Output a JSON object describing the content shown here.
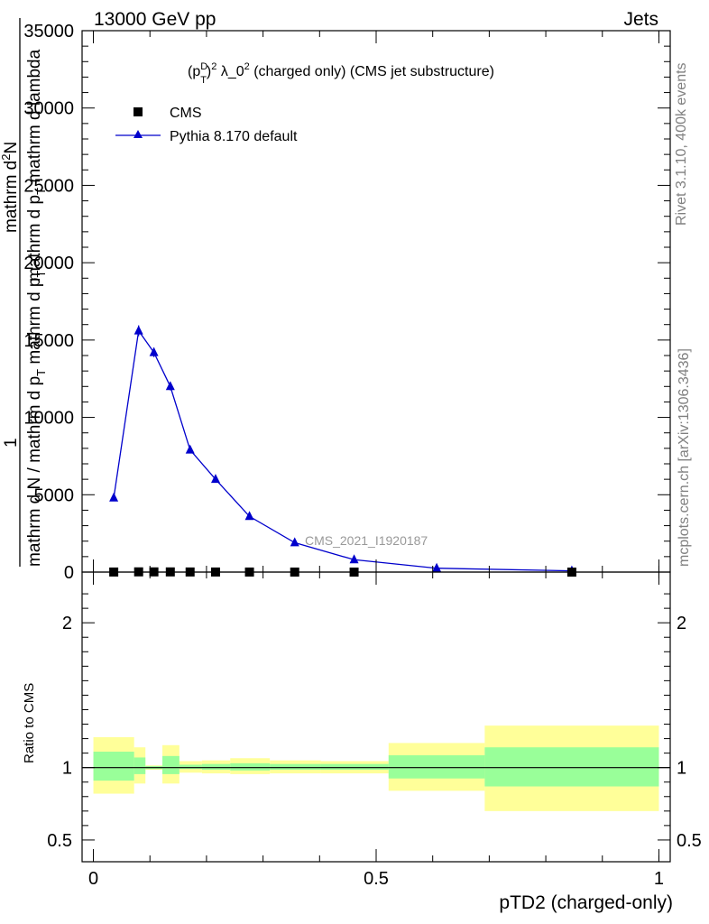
{
  "header": {
    "left": "13000 GeV pp",
    "right": "Jets"
  },
  "side_labels": {
    "rivet": "Rivet 3.1.10,  400k events",
    "mcplots": "mcplots.cern.ch [arXiv:1306.3436]"
  },
  "colors": {
    "mc_line": "#0000cc",
    "data_marker": "#000000",
    "band_inner": "#99ff99",
    "band_outer": "#ffff99"
  },
  "chart_data": [
    {
      "type": "line",
      "panel": "main",
      "title_parts": {
        "p": "(p",
        "sup_d": "D",
        "sub_t": "T",
        "rest": ")",
        "sup2": "2",
        "mid": " λ_0",
        "sup3": "2",
        "tail": " (charged only) (CMS jet substructure)"
      },
      "ylabel_parts": {
        "numer_one": "1",
        "numer_text": "mathrm d N / mathrm d p",
        "numer_sub": "T",
        "numer_tail": " mathrm d p",
        "numer_sub2": "T",
        "denom_top": "mathrm d",
        "denom_sup": "2",
        "denom_rest": "N",
        "denom_bottom": "mathrm d p",
        "denom_bottom_sub": "T",
        "denom_bottom_tail": " mathrm d lambda"
      },
      "watermark": "CMS_2021_I1920187",
      "ylim": [
        0,
        35000
      ],
      "xlim": [
        -0.02,
        1.02
      ],
      "y_ticks": [
        0,
        5000,
        10000,
        15000,
        20000,
        25000,
        30000,
        35000
      ],
      "y_tick_labels": [
        "0",
        "5000",
        "10000",
        "15000",
        "20000",
        "25000",
        "30000",
        "35000"
      ],
      "legend": {
        "placement": "top-left",
        "entries": [
          "CMS",
          "Pythia 8.170 default"
        ]
      },
      "series": [
        {
          "name": "CMS",
          "marker": "square",
          "x": [
            0.036,
            0.08,
            0.107,
            0.136,
            0.171,
            0.216,
            0.276,
            0.356,
            0.461,
            0.846
          ],
          "y": [
            5,
            15,
            14,
            12,
            8,
            6,
            4,
            2,
            1,
            0.1
          ]
        },
        {
          "name": "Pythia 8.170 default",
          "marker": "triangle",
          "x": [
            0.036,
            0.08,
            0.107,
            0.136,
            0.171,
            0.216,
            0.276,
            0.356,
            0.461,
            0.607,
            0.846
          ],
          "y": [
            4800,
            15600,
            14200,
            12000,
            7900,
            6000,
            3600,
            1900,
            800,
            250,
            80
          ],
          "yerr": [
            100,
            350,
            300,
            250,
            180,
            150,
            100,
            60,
            40,
            20,
            10
          ]
        }
      ]
    },
    {
      "type": "area",
      "panel": "ratio",
      "ylabel": "Ratio to CMS",
      "xlabel": "pTD2 (charged-only)",
      "ylim": [
        0.35,
        2.35
      ],
      "xlim": [
        -0.02,
        1.02
      ],
      "y_ticks": [
        0.5,
        1,
        2
      ],
      "y_tick_labels": [
        "0.5",
        "1",
        "2"
      ],
      "x_ticks": [
        0,
        0.5,
        1
      ],
      "x_tick_labels": [
        "0",
        "0.5",
        "1"
      ],
      "bins": [
        {
          "lo": 0.0,
          "hi": 0.072,
          "in_lo": 0.91,
          "in_hi": 1.11,
          "out_lo": 0.82,
          "out_hi": 1.21
        },
        {
          "lo": 0.072,
          "hi": 0.092,
          "in_lo": 0.955,
          "in_hi": 1.07,
          "out_lo": 0.89,
          "out_hi": 1.14
        },
        {
          "lo": 0.092,
          "hi": 0.122,
          "in_lo": 0.99,
          "in_hi": 1.01,
          "out_lo": 0.985,
          "out_hi": 1.015
        },
        {
          "lo": 0.122,
          "hi": 0.152,
          "in_lo": 0.955,
          "in_hi": 1.08,
          "out_lo": 0.89,
          "out_hi": 1.155
        },
        {
          "lo": 0.152,
          "hi": 0.192,
          "in_lo": 0.99,
          "in_hi": 1.02,
          "out_lo": 0.965,
          "out_hi": 1.045
        },
        {
          "lo": 0.192,
          "hi": 0.242,
          "in_lo": 0.985,
          "in_hi": 1.025,
          "out_lo": 0.96,
          "out_hi": 1.05
        },
        {
          "lo": 0.242,
          "hi": 0.312,
          "in_lo": 0.98,
          "in_hi": 1.03,
          "out_lo": 0.955,
          "out_hi": 1.065
        },
        {
          "lo": 0.312,
          "hi": 0.402,
          "in_lo": 0.985,
          "in_hi": 1.025,
          "out_lo": 0.96,
          "out_hi": 1.05
        },
        {
          "lo": 0.402,
          "hi": 0.522,
          "in_lo": 0.985,
          "in_hi": 1.025,
          "out_lo": 0.96,
          "out_hi": 1.045
        },
        {
          "lo": 0.522,
          "hi": 0.692,
          "in_lo": 0.925,
          "in_hi": 1.085,
          "out_lo": 0.84,
          "out_hi": 1.17
        },
        {
          "lo": 0.692,
          "hi": 1.0,
          "in_lo": 0.87,
          "in_hi": 1.14,
          "out_lo": 0.7,
          "out_hi": 1.29
        }
      ]
    }
  ]
}
